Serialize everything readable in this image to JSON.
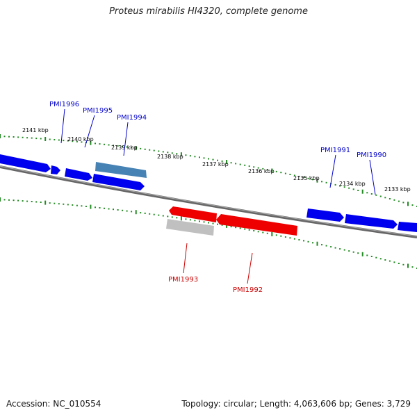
{
  "title": "Proteus mirabilis HI4320, complete genome",
  "footer": {
    "accession": "Accession: NC_010554",
    "info": "Topology: circular; Length: 4,063,606 bp; Genes: 3,729"
  },
  "kbp_labels": [
    "2141 kbp",
    "2140 kbp",
    "2139 kbp",
    "2138 kbp",
    "2137 kbp",
    "2136 kbp",
    "2135 kbp",
    "2134 kbp",
    "2133 kbp"
  ],
  "genes_forward": [
    "PMI1996",
    "PMI1995",
    "PMI1994",
    "PMI1991",
    "PMI1990"
  ],
  "genes_reverse": [
    "PMI1993",
    "PMI1992"
  ],
  "colors": {
    "forward_cds": "#0000ee",
    "forward_highlight": "#4682b4",
    "reverse_cds": "#ee0000",
    "reverse_other": "#c0c0c0",
    "backbone": "#808080",
    "ticks": "#228b22",
    "label_forward": "#0000cc",
    "label_reverse": "#cc0000"
  }
}
